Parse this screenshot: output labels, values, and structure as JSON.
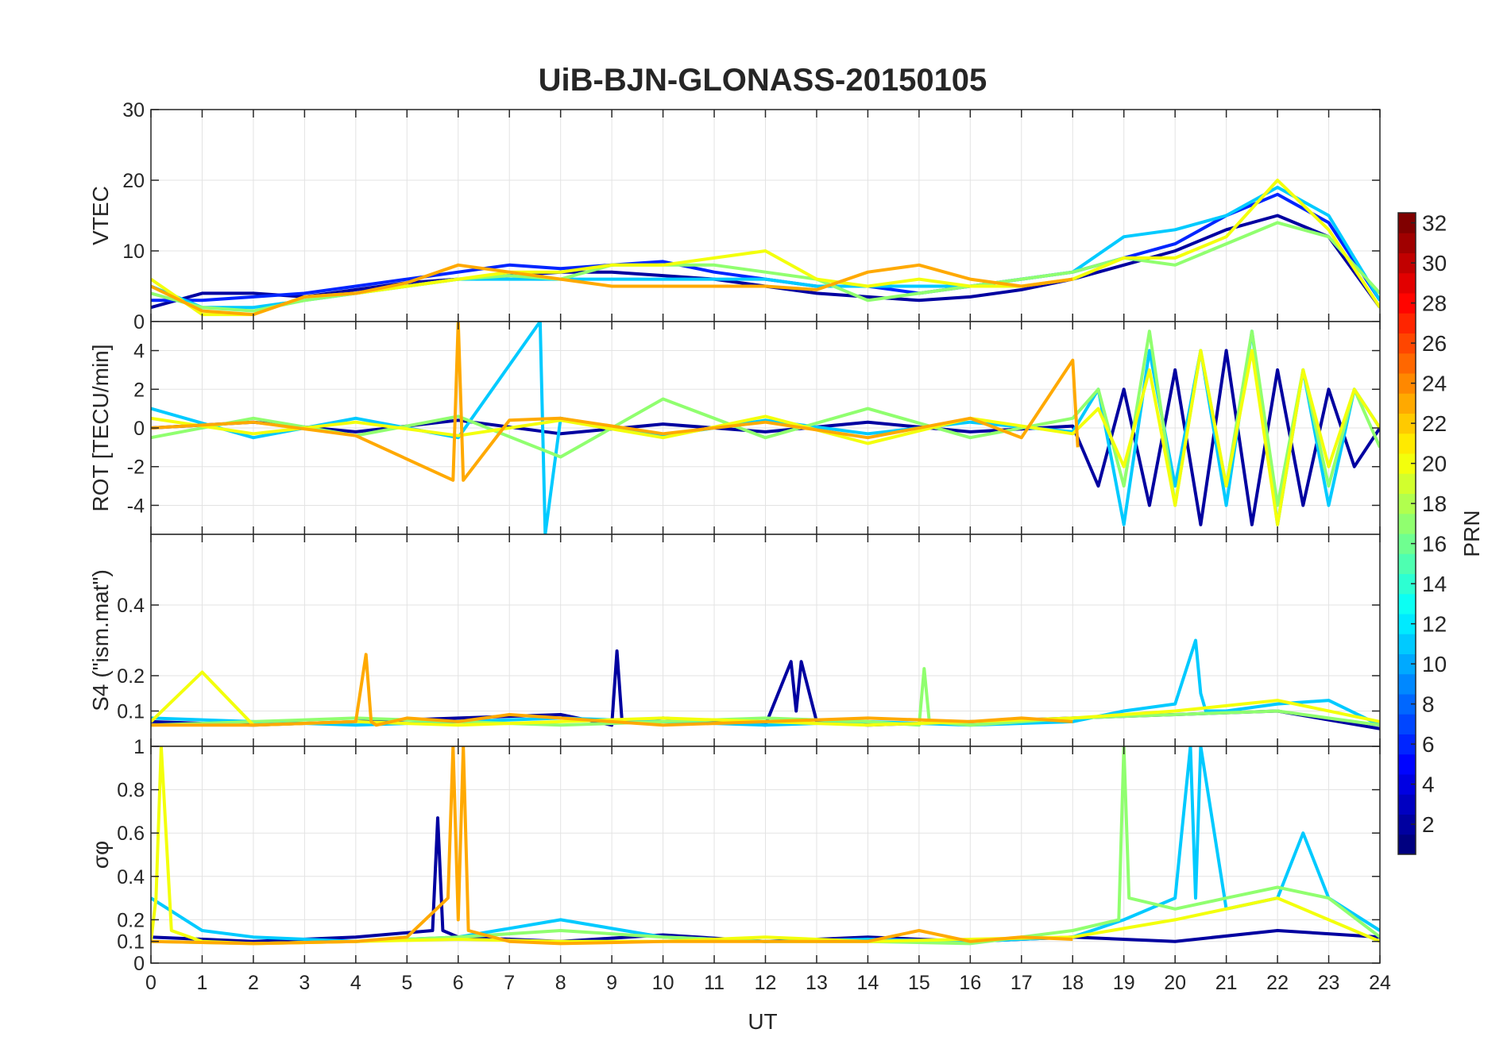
{
  "chart_data": {
    "type": "line",
    "title": "UiB-BJN-GLONASS-20150105",
    "xlabel": "UT",
    "x_ticks": [
      0,
      1,
      2,
      3,
      4,
      5,
      6,
      7,
      8,
      9,
      10,
      11,
      12,
      13,
      14,
      15,
      16,
      17,
      18,
      19,
      20,
      21,
      22,
      23,
      24
    ],
    "xlim": [
      0,
      24
    ],
    "grid": true,
    "colorbar": {
      "label": "PRN",
      "range": [
        1,
        32
      ],
      "ticks": [
        2,
        4,
        6,
        8,
        10,
        12,
        14,
        16,
        18,
        20,
        22,
        24,
        26,
        28,
        30,
        32
      ],
      "colormap": "jet",
      "colors": [
        "#00008f",
        "#0000ff",
        "#00ffff",
        "#ffff00",
        "#ff0000",
        "#800000"
      ]
    },
    "panels": [
      {
        "ylabel": "VTEC",
        "ylim": [
          0,
          30
        ],
        "yticks": [
          0,
          10,
          20,
          30
        ],
        "series": [
          {
            "prn": 2,
            "x": [
              0,
              1,
              2,
              3,
              4,
              5,
              6,
              7,
              8,
              9,
              10,
              11,
              12,
              13,
              14,
              15,
              16,
              17,
              18,
              19,
              20,
              21,
              22,
              23,
              24
            ],
            "y": [
              2,
              4,
              4,
              3.5,
              4.5,
              5.5,
              6,
              6.5,
              7,
              7,
              6.5,
              6,
              5,
              4,
              3.5,
              3,
              3.5,
              4.5,
              6,
              8,
              10,
              13,
              15,
              12,
              2
            ]
          },
          {
            "prn": 6,
            "x": [
              0,
              1,
              2,
              3,
              4,
              5,
              6,
              7,
              8,
              9,
              10,
              11,
              12,
              13,
              14,
              15,
              16,
              17,
              18,
              19,
              20,
              21,
              22,
              23,
              24
            ],
            "y": [
              3,
              3,
              3.5,
              4,
              5,
              6,
              7,
              8,
              7.5,
              8,
              8.5,
              7,
              6,
              5,
              5,
              4,
              5,
              6,
              7,
              9,
              11,
              15,
              18,
              14,
              3
            ]
          },
          {
            "prn": 11,
            "x": [
              0,
              1,
              2,
              3,
              4,
              5,
              6,
              7,
              8,
              9,
              10,
              11,
              12,
              13,
              14,
              15,
              16,
              17,
              18,
              19,
              20,
              21,
              22,
              23,
              24
            ],
            "y": [
              5,
              2,
              2,
              3,
              4,
              5,
              6,
              6,
              6,
              6,
              6,
              6,
              6,
              5,
              5,
              5,
              5,
              6,
              7,
              12,
              13,
              15,
              19,
              15,
              3
            ]
          },
          {
            "prn": 17,
            "x": [
              0,
              1,
              2,
              3,
              4,
              5,
              6,
              7,
              8,
              9,
              10,
              11,
              12,
              13,
              14,
              15,
              16,
              17,
              18,
              19,
              20,
              21,
              22,
              23,
              24
            ],
            "y": [
              4,
              2,
              1.5,
              3,
              4,
              5,
              6,
              6.5,
              6,
              8,
              8,
              8,
              7,
              6,
              3,
              4,
              5,
              6,
              7,
              9,
              8,
              11,
              14,
              12,
              4
            ]
          },
          {
            "prn": 20,
            "x": [
              0,
              1,
              2,
              3,
              4,
              5,
              6,
              7,
              8,
              9,
              10,
              11,
              12,
              13,
              14,
              15,
              16,
              17,
              18,
              19,
              20,
              21,
              22,
              23,
              24
            ],
            "y": [
              6,
              1,
              1,
              3.5,
              4,
              5,
              6,
              7,
              7,
              8,
              8,
              9,
              10,
              6,
              5,
              6,
              5,
              5,
              6,
              9,
              9,
              12,
              20,
              13,
              2
            ]
          },
          {
            "prn": 23,
            "x": [
              0,
              1,
              2,
              3,
              4,
              5,
              6,
              7,
              8,
              9,
              10,
              11,
              12,
              13,
              14,
              15,
              16,
              17,
              18
            ],
            "y": [
              5,
              1.5,
              1,
              3.5,
              4,
              5.5,
              8,
              7,
              6,
              5,
              5,
              5,
              5,
              4.5,
              7,
              8,
              6,
              5,
              6
            ]
          }
        ]
      },
      {
        "ylabel": "ROT [TECU/min]",
        "ylim": [
          -5.5,
          5.5
        ],
        "yticks": [
          -4,
          -2,
          0,
          2,
          4
        ],
        "series": [
          {
            "prn": 2,
            "x": [
              0,
              2,
              4,
              6,
              8,
              10,
              12,
              14,
              16,
              18,
              18.5,
              19,
              19.5,
              20,
              20.5,
              21,
              21.5,
              22,
              22.5,
              23,
              23.5,
              24
            ],
            "y": [
              0,
              0.3,
              -0.2,
              0.4,
              -0.3,
              0.2,
              -0.2,
              0.3,
              -0.2,
              0.1,
              -3,
              2,
              -4,
              3,
              -5,
              4,
              -5,
              3,
              -4,
              2,
              -2,
              0
            ]
          },
          {
            "prn": 11,
            "x": [
              0,
              2,
              4,
              6,
              7.6,
              7.7,
              8,
              10,
              12,
              14,
              16,
              18,
              18.5,
              19,
              19.5,
              20,
              20.5,
              21,
              21.5,
              22,
              22.5,
              23,
              23.5,
              24
            ],
            "y": [
              1,
              -0.5,
              0.5,
              -0.5,
              5.5,
              -5.5,
              0.5,
              -0.4,
              0.4,
              -0.3,
              0.3,
              -0.2,
              2,
              -5,
              4,
              -3,
              4,
              -4,
              5,
              -5,
              3,
              -4,
              2,
              0
            ]
          },
          {
            "prn": 17,
            "x": [
              0,
              2,
              4,
              6,
              8,
              10,
              12,
              14,
              16,
              18,
              18.5,
              19,
              19.5,
              20,
              20.5,
              21,
              21.5,
              22,
              22.5,
              23,
              23.5,
              24
            ],
            "y": [
              -0.5,
              0.5,
              -0.4,
              0.6,
              -1.5,
              1.5,
              -0.5,
              1,
              -0.5,
              0.5,
              2,
              -3,
              5,
              -4,
              4,
              -3,
              5,
              -4,
              3,
              -3,
              2,
              -1
            ]
          },
          {
            "prn": 20,
            "x": [
              0,
              2,
              4,
              6,
              8,
              10,
              12,
              14,
              16,
              18,
              18.5,
              19,
              19.5,
              20,
              20.5,
              21,
              21.5,
              22,
              22.5,
              23,
              23.5,
              24
            ],
            "y": [
              0.5,
              -0.3,
              0.3,
              -0.4,
              0.4,
              -0.5,
              0.6,
              -0.8,
              0.5,
              -0.3,
              1,
              -2,
              3,
              -4,
              4,
              -3,
              4,
              -5,
              3,
              -2,
              2,
              0
            ]
          },
          {
            "prn": 23,
            "x": [
              0,
              2,
              4,
              5.9,
              6.0,
              6.1,
              7,
              8,
              10,
              12,
              14,
              16,
              17,
              18,
              18.1
            ],
            "y": [
              0,
              0.3,
              -0.4,
              -2.7,
              5.5,
              -2.7,
              0.4,
              0.5,
              -0.3,
              0.3,
              -0.5,
              0.5,
              -0.5,
              3.5,
              -1
            ]
          }
        ]
      },
      {
        "ylabel": "S4 (\"ism.mat\")",
        "ylim": [
          0,
          0.6
        ],
        "yticks": [
          0.1,
          0.2,
          0.4
        ],
        "series": [
          {
            "prn": 2,
            "x": [
              0,
              2,
              4,
              6,
              8,
              9,
              9.1,
              9.2,
              10,
              12,
              12.5,
              12.6,
              12.7,
              13,
              14,
              16,
              18,
              20,
              22,
              24
            ],
            "y": [
              0.07,
              0.06,
              0.07,
              0.08,
              0.09,
              0.06,
              0.27,
              0.07,
              0.08,
              0.06,
              0.24,
              0.1,
              0.24,
              0.07,
              0.06,
              0.07,
              0.08,
              0.09,
              0.1,
              0.05
            ]
          },
          {
            "prn": 11,
            "x": [
              0,
              2,
              4,
              6,
              8,
              10,
              12,
              14,
              16,
              18,
              19,
              20,
              20.4,
              20.5,
              20.6,
              21,
              22,
              23,
              24
            ],
            "y": [
              0.08,
              0.07,
              0.06,
              0.07,
              0.08,
              0.07,
              0.06,
              0.07,
              0.06,
              0.07,
              0.1,
              0.12,
              0.3,
              0.15,
              0.1,
              0.1,
              0.12,
              0.13,
              0.06
            ]
          },
          {
            "prn": 17,
            "x": [
              0,
              2,
              4,
              6,
              8,
              10,
              12,
              14,
              15,
              15.1,
              15.2,
              16,
              18,
              20,
              22,
              24
            ],
            "y": [
              0.06,
              0.07,
              0.08,
              0.07,
              0.06,
              0.07,
              0.08,
              0.07,
              0.06,
              0.22,
              0.07,
              0.06,
              0.08,
              0.09,
              0.1,
              0.06
            ]
          },
          {
            "prn": 20,
            "x": [
              0,
              1,
              2,
              4,
              6,
              8,
              10,
              12,
              14,
              16,
              18,
              20,
              22,
              24
            ],
            "y": [
              0.07,
              0.21,
              0.06,
              0.07,
              0.06,
              0.07,
              0.08,
              0.07,
              0.06,
              0.07,
              0.08,
              0.1,
              0.13,
              0.07
            ]
          },
          {
            "prn": 23,
            "x": [
              0,
              2,
              4,
              4.2,
              4.3,
              4.4,
              5,
              6,
              7,
              8,
              9,
              10,
              12,
              14,
              16,
              17,
              18
            ],
            "y": [
              0.06,
              0.06,
              0.07,
              0.26,
              0.07,
              0.06,
              0.08,
              0.07,
              0.09,
              0.08,
              0.07,
              0.06,
              0.07,
              0.08,
              0.07,
              0.08,
              0.07
            ]
          }
        ]
      },
      {
        "ylabel": "σφ",
        "ylim": [
          0,
          1
        ],
        "yticks": [
          0,
          0.1,
          0.2,
          0.4,
          0.6,
          0.8,
          1
        ],
        "series": [
          {
            "prn": 2,
            "x": [
              0,
              2,
              4,
              5.5,
              5.6,
              5.7,
              6,
              8,
              10,
              12,
              14,
              16,
              18,
              20,
              22,
              24
            ],
            "y": [
              0.12,
              0.1,
              0.12,
              0.15,
              0.67,
              0.15,
              0.12,
              0.1,
              0.13,
              0.1,
              0.12,
              0.1,
              0.12,
              0.1,
              0.15,
              0.12
            ]
          },
          {
            "prn": 11,
            "x": [
              0,
              1,
              2,
              4,
              6,
              8,
              10,
              12,
              14,
              16,
              18,
              19,
              20,
              20.3,
              20.4,
              20.5,
              21,
              22,
              22.5,
              23,
              24
            ],
            "y": [
              0.3,
              0.15,
              0.12,
              0.1,
              0.12,
              0.2,
              0.12,
              0.1,
              0.11,
              0.1,
              0.12,
              0.2,
              0.3,
              1,
              0.3,
              1,
              0.25,
              0.3,
              0.6,
              0.3,
              0.15
            ]
          },
          {
            "prn": 17,
            "x": [
              0,
              2,
              4,
              6,
              8,
              10,
              12,
              14,
              16,
              18,
              18.9,
              19.0,
              19.1,
              20,
              21,
              22,
              23,
              24
            ],
            "y": [
              0.1,
              0.09,
              0.1,
              0.12,
              0.15,
              0.12,
              0.1,
              0.1,
              0.09,
              0.15,
              0.2,
              1,
              0.3,
              0.25,
              0.3,
              0.35,
              0.3,
              0.12
            ]
          },
          {
            "prn": 20,
            "x": [
              0,
              0.1,
              0.2,
              0.4,
              1,
              2,
              4,
              6,
              8,
              10,
              12,
              14,
              16,
              18,
              20,
              22,
              24
            ],
            "y": [
              0.1,
              0.3,
              1,
              0.15,
              0.1,
              0.09,
              0.1,
              0.11,
              0.1,
              0.1,
              0.12,
              0.1,
              0.11,
              0.12,
              0.2,
              0.3,
              0.1
            ]
          },
          {
            "prn": 23,
            "x": [
              0,
              2,
              4,
              5,
              5.8,
              5.9,
              6.0,
              6.1,
              6.2,
              7,
              8,
              10,
              12,
              14,
              15,
              16,
              17,
              18
            ],
            "y": [
              0.1,
              0.09,
              0.1,
              0.12,
              0.3,
              1,
              0.2,
              1,
              0.15,
              0.1,
              0.09,
              0.1,
              0.1,
              0.1,
              0.15,
              0.1,
              0.12,
              0.11
            ]
          }
        ]
      }
    ]
  }
}
